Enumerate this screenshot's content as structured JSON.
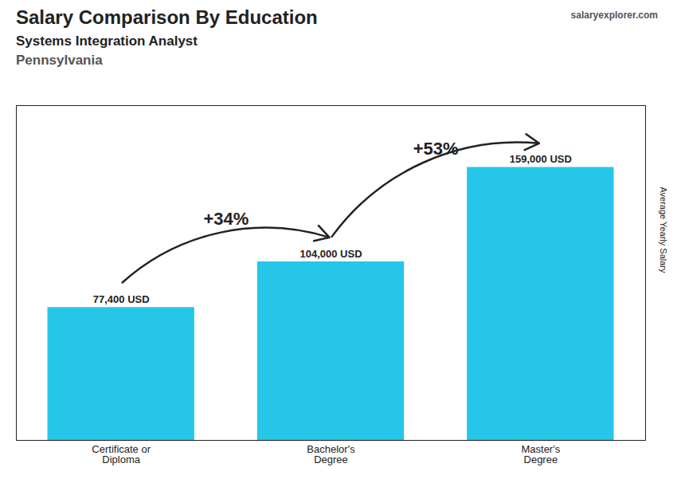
{
  "chart_data": {
    "type": "bar",
    "title": "Salary Comparison By Education",
    "subtitle": "Systems Integration Analyst",
    "location": "Pennsylvania",
    "watermark": "salaryexplorer.com",
    "ylabel": "Average Yearly Salary",
    "categories": [
      "Certificate or\nDiploma",
      "Bachelor's\nDegree",
      "Master's\nDegree"
    ],
    "values": [
      77400,
      104000,
      159000
    ],
    "value_labels": [
      "77,400 USD",
      "104,000 USD",
      "159,000 USD"
    ],
    "data_labels": true,
    "annotations": [
      "+34%",
      "+53%"
    ],
    "color": "#26c6e8",
    "ylim": [
      0,
      195000
    ],
    "tick_labels": "x",
    "grid": false
  }
}
